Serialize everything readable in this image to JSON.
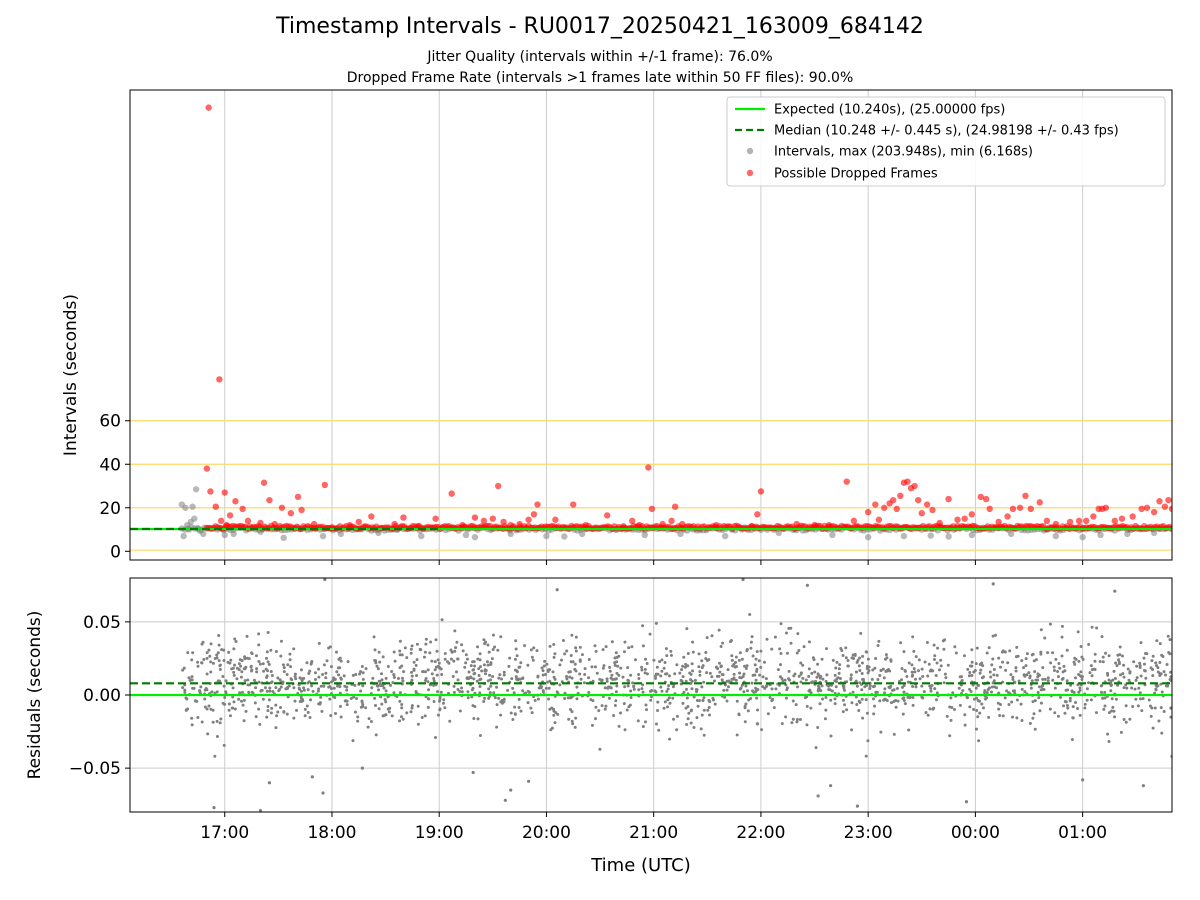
{
  "figure": {
    "title": "Timestamp Intervals - RU0017_20250421_163009_684142",
    "subtitle_1": "Jitter Quality (intervals within +/-1 frame): 76.0%",
    "subtitle_2": "Dropped Frame Rate (intervals >1 frames late within 50 FF files): 90.0%"
  },
  "colors": {
    "expected": "#00ee00",
    "median": "#007a00",
    "intervals": "#808080",
    "dropped": "#ff0000",
    "threshold": "#ffd966",
    "grid": "#cccccc"
  },
  "chart_data": [
    {
      "type": "scatter",
      "panel": "intervals",
      "ylabel": "Intervals (seconds)",
      "xlim": [
        "16:07",
        "01:50"
      ],
      "ylim": [
        -4,
        212
      ],
      "y_ticks": [
        "0",
        "20",
        "40",
        "60"
      ],
      "y_tick_values": [
        0,
        20,
        40,
        60
      ],
      "grid": "vertical",
      "legend_position": "top-right",
      "legend": [
        "Expected (10.240s), (25.00000 fps)",
        "Median (10.248 +/- 0.445 s), (24.98198 +/- 0.43 fps)",
        "Intervals, max (203.948s), min (6.168s)",
        "Possible Dropped Frames"
      ],
      "expected_interval": 10.24,
      "median_interval": 10.248,
      "median_line_span": [
        "16:07",
        "19:00"
      ],
      "threshold_lines": [
        0.5,
        10.24,
        20.0,
        40.0,
        60.0
      ],
      "series": [
        {
          "name": "Intervals, max (203.948s), min (6.168s)",
          "style": "gray-points",
          "points": [
            [
              "16:36",
              21.5
            ],
            [
              "16:38",
              20.0
            ],
            [
              "16:40",
              10.0
            ],
            [
              "16:42",
              20.5
            ],
            [
              "16:43",
              15.0
            ],
            [
              "16:44",
              28.5
            ],
            [
              "16:45",
              10.5
            ],
            [
              "16:37",
              7.0
            ],
            [
              "16:39",
              12.0
            ],
            [
              "16:41",
              13.5
            ],
            [
              "16:46",
              9.5
            ],
            [
              "16:48",
              8.0
            ],
            [
              "17:00",
              7.5
            ],
            [
              "17:05",
              8.0
            ],
            [
              "17:20",
              9.0
            ],
            [
              "17:33",
              6.2
            ],
            [
              "17:55",
              7.0
            ],
            [
              "18:05",
              8.0
            ],
            [
              "18:26",
              8.5
            ],
            [
              "18:50",
              7.0
            ],
            [
              "19:15",
              7.5
            ],
            [
              "19:20",
              6.5
            ],
            [
              "19:40",
              8.0
            ],
            [
              "20:00",
              7.0
            ],
            [
              "20:10",
              6.8
            ],
            [
              "20:20",
              8.0
            ],
            [
              "20:55",
              7.5
            ],
            [
              "21:15",
              8.0
            ],
            [
              "21:40",
              7.0
            ],
            [
              "22:10",
              8.5
            ],
            [
              "22:40",
              7.5
            ],
            [
              "23:00",
              6.5
            ],
            [
              "23:20",
              7.0
            ],
            [
              "23:35",
              7.2
            ],
            [
              "23:45",
              6.8
            ],
            [
              "23:58",
              7.5
            ],
            [
              "00:20",
              8.0
            ],
            [
              "00:45",
              7.0
            ],
            [
              "01:00",
              6.5
            ],
            [
              "01:10",
              7.5
            ],
            [
              "01:25",
              8.0
            ],
            [
              "01:40",
              8.5
            ]
          ]
        },
        {
          "name": "Possible Dropped Frames",
          "style": "red-points",
          "points": [
            [
              "16:51",
              203.9
            ],
            [
              "16:57",
              79.0
            ],
            [
              "16:50",
              38.0
            ],
            [
              "16:52",
              27.5
            ],
            [
              "16:55",
              20.5
            ],
            [
              "16:58",
              14.0
            ],
            [
              "17:00",
              27.0
            ],
            [
              "17:01",
              12.0
            ],
            [
              "17:03",
              16.5
            ],
            [
              "17:06",
              23.0
            ],
            [
              "17:10",
              19.5
            ],
            [
              "17:13",
              14.0
            ],
            [
              "17:20",
              13.0
            ],
            [
              "17:22",
              31.5
            ],
            [
              "17:25",
              23.5
            ],
            [
              "17:28",
              12.5
            ],
            [
              "17:32",
              20.0
            ],
            [
              "17:37",
              17.5
            ],
            [
              "17:41",
              25.0
            ],
            [
              "17:43",
              19.0
            ],
            [
              "17:50",
              12.5
            ],
            [
              "17:56",
              30.5
            ],
            [
              "18:00",
              11.0
            ],
            [
              "18:10",
              12.0
            ],
            [
              "18:15",
              13.5
            ],
            [
              "18:22",
              16.0
            ],
            [
              "18:35",
              12.5
            ],
            [
              "18:40",
              15.5
            ],
            [
              "18:48",
              11.5
            ],
            [
              "18:58",
              15.0
            ],
            [
              "19:07",
              26.5
            ],
            [
              "19:13",
              12.0
            ],
            [
              "19:20",
              15.5
            ],
            [
              "19:25",
              14.0
            ],
            [
              "19:30",
              15.0
            ],
            [
              "19:33",
              30.0
            ],
            [
              "19:36",
              13.5
            ],
            [
              "19:40",
              12.0
            ],
            [
              "19:45",
              12.5
            ],
            [
              "19:50",
              14.5
            ],
            [
              "19:53",
              17.0
            ],
            [
              "19:55",
              21.5
            ],
            [
              "20:05",
              14.5
            ],
            [
              "20:15",
              21.5
            ],
            [
              "20:22",
              12.0
            ],
            [
              "20:34",
              16.5
            ],
            [
              "20:43",
              11.5
            ],
            [
              "20:48",
              14.0
            ],
            [
              "20:52",
              12.0
            ],
            [
              "20:57",
              38.5
            ],
            [
              "20:59",
              19.5
            ],
            [
              "21:05",
              12.5
            ],
            [
              "21:10",
              14.0
            ],
            [
              "21:12",
              20.5
            ],
            [
              "21:16",
              12.5
            ],
            [
              "21:35",
              12.0
            ],
            [
              "21:55",
              11.5
            ],
            [
              "21:58",
              17.0
            ],
            [
              "22:00",
              27.5
            ],
            [
              "22:20",
              12.5
            ],
            [
              "22:30",
              12.0
            ],
            [
              "22:38",
              12.0
            ],
            [
              "22:48",
              32.0
            ],
            [
              "22:52",
              14.0
            ],
            [
              "23:00",
              18.0
            ],
            [
              "23:04",
              21.5
            ],
            [
              "23:06",
              14.5
            ],
            [
              "23:09",
              20.0
            ],
            [
              "23:12",
              22.0
            ],
            [
              "23:14",
              23.5
            ],
            [
              "23:16",
              19.5
            ],
            [
              "23:18",
              25.5
            ],
            [
              "23:20",
              31.5
            ],
            [
              "23:22",
              32.0
            ],
            [
              "23:24",
              29.0
            ],
            [
              "23:26",
              30.0
            ],
            [
              "23:28",
              23.5
            ],
            [
              "23:30",
              17.5
            ],
            [
              "23:33",
              21.5
            ],
            [
              "23:36",
              19.0
            ],
            [
              "23:40",
              13.0
            ],
            [
              "23:45",
              24.0
            ],
            [
              "23:50",
              14.5
            ],
            [
              "23:54",
              15.0
            ],
            [
              "23:58",
              17.0
            ],
            [
              "00:03",
              25.0
            ],
            [
              "00:06",
              24.0
            ],
            [
              "00:08",
              19.5
            ],
            [
              "00:13",
              13.5
            ],
            [
              "00:18",
              16.0
            ],
            [
              "00:21",
              19.5
            ],
            [
              "00:25",
              20.0
            ],
            [
              "00:28",
              25.5
            ],
            [
              "00:31",
              19.5
            ],
            [
              "00:36",
              22.5
            ],
            [
              "00:40",
              14.0
            ],
            [
              "00:45",
              12.5
            ],
            [
              "00:53",
              13.5
            ],
            [
              "00:58",
              14.0
            ],
            [
              "01:02",
              14.0
            ],
            [
              "01:06",
              16.0
            ],
            [
              "01:09",
              19.5
            ],
            [
              "01:11",
              19.5
            ],
            [
              "01:13",
              20.0
            ],
            [
              "01:18",
              14.0
            ],
            [
              "01:22",
              15.0
            ],
            [
              "01:28",
              16.0
            ],
            [
              "01:33",
              19.5
            ],
            [
              "01:36",
              20.0
            ],
            [
              "01:40",
              18.0
            ],
            [
              "01:43",
              23.0
            ],
            [
              "01:46",
              20.5
            ],
            [
              "01:48",
              23.5
            ],
            [
              "01:50",
              19.5
            ]
          ]
        }
      ]
    },
    {
      "type": "scatter",
      "panel": "residuals",
      "xlabel": "Time (UTC)",
      "ylabel": "Residuals (seconds)",
      "xlim": [
        "16:07",
        "01:50"
      ],
      "ylim": [
        -0.08,
        0.08
      ],
      "y_ticks": [
        "0.05",
        "0.00",
        "−0.05"
      ],
      "y_tick_values": [
        0.05,
        0.0,
        -0.05
      ],
      "x_ticks": [
        "17:00",
        "18:00",
        "19:00",
        "20:00",
        "21:00",
        "22:00",
        "23:00",
        "00:00",
        "01:00"
      ],
      "grid": "both",
      "expected_line": 0.0,
      "median_line": 0.008,
      "data_start": "16:36",
      "data_end": "01:50",
      "point_count": 2000,
      "typical_spread": 0.015,
      "outliers": [
        [
          "16:54",
          -0.077
        ],
        [
          "17:20",
          -0.079
        ],
        [
          "17:25",
          -0.06
        ],
        [
          "17:49",
          -0.056
        ],
        [
          "17:55",
          -0.067
        ],
        [
          "17:56",
          0.079
        ],
        [
          "18:17",
          -0.05
        ],
        [
          "19:19",
          -0.053
        ],
        [
          "19:37",
          -0.072
        ],
        [
          "19:40",
          -0.065
        ],
        [
          "19:50",
          -0.059
        ],
        [
          "20:06",
          0.072
        ],
        [
          "21:50",
          0.079
        ],
        [
          "22:26",
          0.075
        ],
        [
          "22:32",
          -0.069
        ],
        [
          "22:39",
          -0.062
        ],
        [
          "22:54",
          -0.076
        ],
        [
          "23:55",
          -0.073
        ],
        [
          "00:10",
          0.076
        ],
        [
          "01:00",
          -0.058
        ],
        [
          "01:18",
          0.071
        ],
        [
          "01:34",
          -0.062
        ],
        [
          "01:50",
          -0.042
        ]
      ]
    }
  ]
}
